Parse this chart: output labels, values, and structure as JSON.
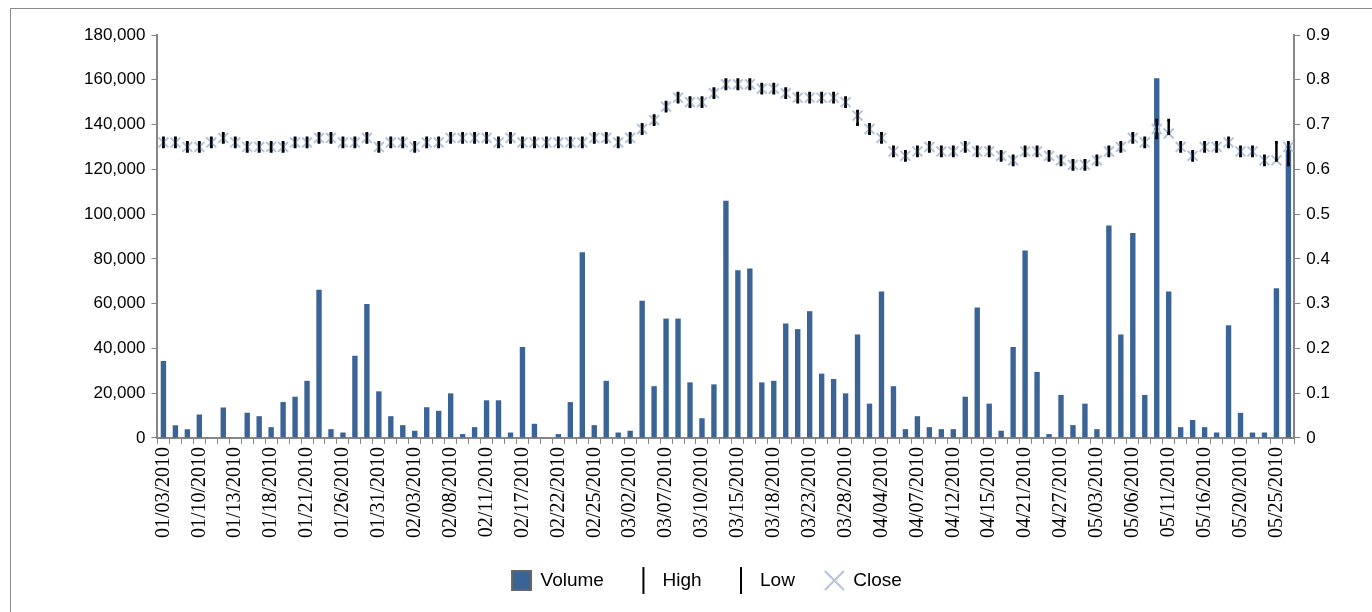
{
  "chart_data": {
    "type": "bar",
    "categories": [
      "01/03/2010",
      null,
      null,
      "01/10/2010",
      null,
      null,
      "01/13/2010",
      null,
      null,
      "01/18/2010",
      null,
      null,
      "01/21/2010",
      null,
      null,
      "01/26/2010",
      null,
      null,
      "01/31/2010",
      null,
      null,
      "02/03/2010",
      null,
      null,
      "02/08/2010",
      null,
      null,
      "02/11/2010",
      null,
      null,
      "02/17/2010",
      null,
      null,
      "02/22/2010",
      null,
      null,
      "02/25/2010",
      null,
      null,
      "03/02/2010",
      null,
      null,
      "03/07/2010",
      null,
      null,
      "03/10/2010",
      null,
      null,
      "03/15/2010",
      null,
      null,
      "03/18/2010",
      null,
      null,
      "03/23/2010",
      null,
      null,
      "03/28/2010",
      null,
      null,
      "04/04/2010",
      null,
      null,
      "04/07/2010",
      null,
      null,
      "04/12/2010",
      null,
      null,
      "04/15/2010",
      null,
      null,
      "04/21/2010",
      null,
      null,
      "04/27/2010",
      null,
      null,
      "05/03/2010",
      null,
      null,
      "05/06/2010",
      null,
      null,
      "05/11/2010",
      null,
      null,
      "05/16/2010",
      null,
      null,
      "05/20/2010",
      null,
      null,
      "05/25/2010",
      null
    ],
    "series": [
      {
        "name": "Volume",
        "type": "bar",
        "color": "#3b6496",
        "values": [
          34400,
          5700,
          3900,
          10400,
          null,
          13600,
          null,
          11200,
          9700,
          4800,
          16000,
          18400,
          25500,
          66200,
          3900,
          2400,
          36700,
          59800,
          20800,
          9700,
          5700,
          3200,
          13700,
          12100,
          19900,
          1700,
          4800,
          16800,
          16800,
          2400,
          40600,
          6300,
          200,
          1700,
          16000,
          82900,
          5700,
          25500,
          2400,
          3200,
          61300,
          23100,
          53300,
          53300,
          24800,
          8800,
          23900,
          105900,
          74900,
          75700,
          24800,
          25500,
          51100,
          48600,
          56600,
          28700,
          26300,
          19900,
          46200,
          15300,
          65400,
          23100,
          3900,
          9700,
          4800,
          3900,
          3900,
          18400,
          58300,
          15300,
          3200,
          40600,
          83700,
          29500,
          1700,
          19200,
          5700,
          15300,
          3900,
          94900,
          46200,
          91500,
          19200,
          160700,
          65400,
          4800,
          8000,
          4800,
          2400,
          50300,
          11200,
          2400,
          2400,
          66900,
          130800
        ]
      },
      {
        "name": "High",
        "type": "scatter",
        "axis": "y2",
        "marker": "square",
        "color": "#000000",
        "values": [
          0.67,
          0.67,
          0.66,
          0.66,
          0.67,
          0.68,
          0.67,
          0.66,
          0.66,
          0.66,
          0.66,
          0.67,
          0.67,
          0.68,
          0.68,
          0.67,
          0.67,
          0.68,
          0.66,
          0.67,
          0.67,
          0.66,
          0.67,
          0.67,
          0.68,
          0.68,
          0.68,
          0.68,
          0.67,
          0.68,
          0.67,
          0.67,
          0.67,
          0.67,
          0.67,
          0.67,
          0.68,
          0.68,
          0.67,
          0.68,
          0.7,
          0.72,
          0.75,
          0.77,
          0.76,
          0.76,
          0.78,
          0.8,
          0.8,
          0.8,
          0.79,
          0.79,
          0.78,
          0.77,
          0.77,
          0.77,
          0.77,
          0.76,
          0.73,
          0.7,
          0.68,
          0.65,
          0.64,
          0.65,
          0.66,
          0.65,
          0.65,
          0.66,
          0.65,
          0.65,
          0.64,
          0.63,
          0.65,
          0.65,
          0.64,
          0.63,
          0.62,
          0.62,
          0.63,
          0.65,
          0.66,
          0.68,
          0.67,
          0.71,
          0.71,
          0.66,
          0.64,
          0.66,
          0.66,
          0.67,
          0.65,
          0.65,
          0.63,
          0.66,
          0.66
        ]
      },
      {
        "name": "Low",
        "type": "scatter",
        "axis": "y2",
        "marker": "square",
        "color": "#000000",
        "values": [
          0.65,
          0.65,
          0.64,
          0.64,
          0.65,
          0.66,
          0.65,
          0.64,
          0.64,
          0.64,
          0.64,
          0.65,
          0.65,
          0.66,
          0.66,
          0.65,
          0.65,
          0.66,
          0.64,
          0.65,
          0.65,
          0.64,
          0.65,
          0.65,
          0.66,
          0.66,
          0.66,
          0.66,
          0.65,
          0.66,
          0.65,
          0.65,
          0.65,
          0.65,
          0.65,
          0.65,
          0.66,
          0.66,
          0.65,
          0.66,
          0.68,
          0.7,
          0.73,
          0.75,
          0.74,
          0.74,
          0.76,
          0.78,
          0.78,
          0.78,
          0.77,
          0.77,
          0.76,
          0.75,
          0.75,
          0.75,
          0.75,
          0.74,
          0.7,
          0.68,
          0.66,
          0.63,
          0.62,
          0.63,
          0.64,
          0.63,
          0.63,
          0.64,
          0.63,
          0.63,
          0.62,
          0.61,
          0.63,
          0.63,
          0.62,
          0.61,
          0.6,
          0.6,
          0.61,
          0.63,
          0.64,
          0.66,
          0.65,
          0.67,
          0.68,
          0.64,
          0.62,
          0.64,
          0.64,
          0.65,
          0.63,
          0.63,
          0.61,
          0.62,
          0.61
        ]
      },
      {
        "name": "Close",
        "type": "scatter",
        "axis": "y2",
        "marker": "cross",
        "color": "#b4c4de",
        "values": [
          0.66,
          0.66,
          0.65,
          0.65,
          0.66,
          0.67,
          0.66,
          0.65,
          0.65,
          0.65,
          0.65,
          0.66,
          0.66,
          0.67,
          0.67,
          0.66,
          0.66,
          0.67,
          0.65,
          0.66,
          0.66,
          0.65,
          0.66,
          0.66,
          0.67,
          0.67,
          0.67,
          0.67,
          0.66,
          0.67,
          0.66,
          0.66,
          0.66,
          0.66,
          0.66,
          0.66,
          0.67,
          0.67,
          0.66,
          0.67,
          0.69,
          0.71,
          0.74,
          0.76,
          0.75,
          0.75,
          0.77,
          0.79,
          0.79,
          0.79,
          0.78,
          0.78,
          0.77,
          0.76,
          0.76,
          0.76,
          0.76,
          0.75,
          0.72,
          0.69,
          0.67,
          0.64,
          0.63,
          0.64,
          0.65,
          0.64,
          0.64,
          0.65,
          0.64,
          0.64,
          0.63,
          0.62,
          0.64,
          0.64,
          0.63,
          0.62,
          0.61,
          0.61,
          0.62,
          0.64,
          0.65,
          0.67,
          0.66,
          0.69,
          0.68,
          0.65,
          0.63,
          0.65,
          0.65,
          0.66,
          0.64,
          0.64,
          0.62,
          0.62,
          0.65
        ]
      }
    ],
    "ylim": [
      0,
      180000
    ],
    "yticks": [
      {
        "value": 0,
        "label": "0"
      },
      {
        "value": 20000,
        "label": "20,000"
      },
      {
        "value": 40000,
        "label": "40,000"
      },
      {
        "value": 60000,
        "label": "60,000"
      },
      {
        "value": 80000,
        "label": "80,000"
      },
      {
        "value": 100000,
        "label": "100,000"
      },
      {
        "value": 120000,
        "label": "120,000"
      },
      {
        "value": 140000,
        "label": "140,000"
      },
      {
        "value": 160000,
        "label": "160,000"
      },
      {
        "value": 180000,
        "label": "180,000"
      }
    ],
    "y2lim": [
      0,
      0.9
    ],
    "y2ticks": [
      0,
      0.1,
      0.2,
      0.3,
      0.4,
      0.5,
      0.6,
      0.7,
      0.8,
      0.9
    ],
    "grid": false,
    "legend": "bottom"
  }
}
